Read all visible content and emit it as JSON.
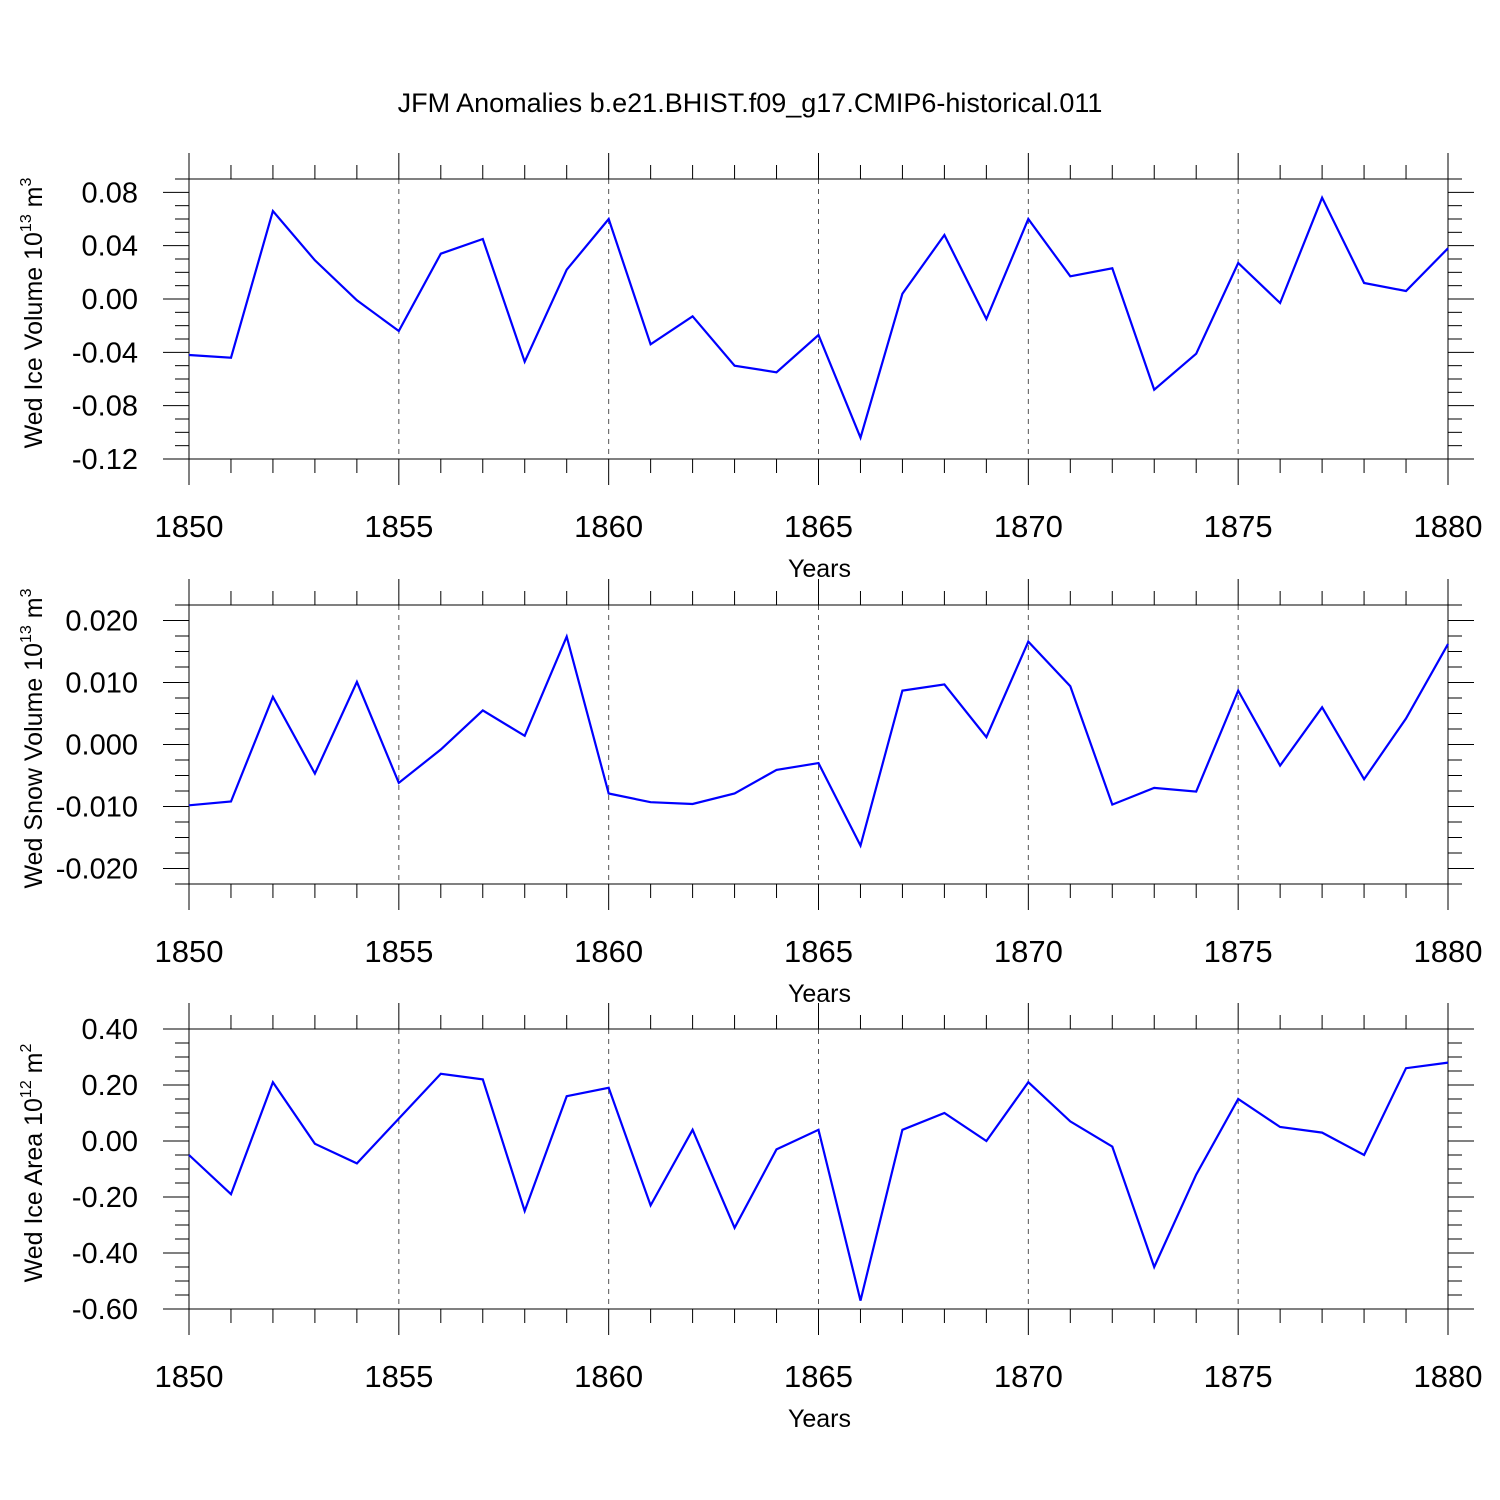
{
  "title": "JFM Anomalies b.e21.BHIST.f09_g17.CMIP6-historical.011",
  "colors": {
    "line": "#0000ff",
    "axis": "#000000",
    "grid": "#555555"
  },
  "chart_data": [
    {
      "type": "line",
      "title": "",
      "xlabel": "Years",
      "ylabel": {
        "main": "Wed Ice Volume 10",
        "exp": "13",
        "unit": " m",
        "unit_exp": "3"
      },
      "xlim": [
        1850,
        1880
      ],
      "ylim": [
        -0.12,
        0.09
      ],
      "yticks": [
        0.08,
        0.04,
        0.0,
        -0.04,
        -0.08,
        -0.12
      ],
      "ytick_labels": [
        "0.08",
        "0.04",
        "0.00",
        "-0.04",
        "-0.08",
        "-0.12"
      ],
      "xticks": [
        1850,
        1855,
        1860,
        1865,
        1870,
        1875,
        1880
      ],
      "xtick_labels": [
        "1850",
        "1855",
        "1860",
        "1865",
        "1870",
        "1875",
        "1880"
      ],
      "grid": "vertical dashed at major x ticks",
      "x": [
        1850,
        1851,
        1852,
        1853,
        1854,
        1855,
        1856,
        1857,
        1858,
        1859,
        1860,
        1861,
        1862,
        1863,
        1864,
        1865,
        1866,
        1867,
        1868,
        1869,
        1870,
        1871,
        1872,
        1873,
        1874,
        1875,
        1876,
        1877,
        1878,
        1879,
        1880
      ],
      "values": [
        -0.042,
        -0.044,
        0.066,
        0.029,
        -0.001,
        -0.024,
        0.034,
        0.045,
        -0.047,
        0.022,
        0.06,
        -0.034,
        -0.013,
        -0.05,
        -0.055,
        -0.027,
        -0.104,
        0.004,
        0.048,
        -0.015,
        0.06,
        0.017,
        0.023,
        -0.068,
        -0.041,
        0.027,
        -0.003,
        0.076,
        0.012,
        0.006,
        0.038
      ]
    },
    {
      "type": "line",
      "title": "",
      "xlabel": "Years",
      "ylabel": {
        "main": "Wed Snow Volume 10",
        "exp": "13",
        "unit": " m",
        "unit_exp": "3"
      },
      "xlim": [
        1850,
        1880
      ],
      "ylim": [
        -0.0225,
        0.0225
      ],
      "yticks": [
        0.02,
        0.01,
        0.0,
        -0.01,
        -0.02
      ],
      "ytick_labels": [
        "0.020",
        "0.010",
        "0.000",
        "-0.010",
        "-0.020"
      ],
      "xticks": [
        1850,
        1855,
        1860,
        1865,
        1870,
        1875,
        1880
      ],
      "xtick_labels": [
        "1850",
        "1855",
        "1860",
        "1865",
        "1870",
        "1875",
        "1880"
      ],
      "grid": "vertical dashed at major x ticks",
      "x": [
        1850,
        1851,
        1852,
        1853,
        1854,
        1855,
        1856,
        1857,
        1858,
        1859,
        1860,
        1861,
        1862,
        1863,
        1864,
        1865,
        1866,
        1867,
        1868,
        1869,
        1870,
        1871,
        1872,
        1873,
        1874,
        1875,
        1876,
        1877,
        1878,
        1879,
        1880
      ],
      "values": [
        -0.0098,
        -0.0092,
        0.0077,
        -0.0047,
        0.0101,
        -0.0062,
        -0.0008,
        0.0055,
        0.0014,
        0.0174,
        -0.0079,
        -0.0093,
        -0.0096,
        -0.0079,
        -0.0041,
        -0.003,
        -0.0163,
        0.0087,
        0.0097,
        0.0012,
        0.0166,
        0.0094,
        -0.0097,
        -0.007,
        -0.0076,
        0.0087,
        -0.0034,
        0.006,
        -0.0056,
        0.0042,
        0.0162
      ]
    },
    {
      "type": "line",
      "title": "",
      "xlabel": "Years",
      "ylabel": {
        "main": "Wed Ice Area 10",
        "exp": "12",
        "unit": " m",
        "unit_exp": "2"
      },
      "xlim": [
        1850,
        1880
      ],
      "ylim": [
        -0.6,
        0.4
      ],
      "yticks": [
        0.4,
        0.2,
        0.0,
        -0.2,
        -0.4,
        -0.6
      ],
      "ytick_labels": [
        "0.40",
        "0.20",
        "0.00",
        "-0.20",
        "-0.40",
        "-0.60"
      ],
      "xticks": [
        1850,
        1855,
        1860,
        1865,
        1870,
        1875,
        1880
      ],
      "xtick_labels": [
        "1850",
        "1855",
        "1860",
        "1865",
        "1870",
        "1875",
        "1880"
      ],
      "grid": "vertical dashed at major x ticks",
      "x": [
        1850,
        1851,
        1852,
        1853,
        1854,
        1855,
        1856,
        1857,
        1858,
        1859,
        1860,
        1861,
        1862,
        1863,
        1864,
        1865,
        1866,
        1867,
        1868,
        1869,
        1870,
        1871,
        1872,
        1873,
        1874,
        1875,
        1876,
        1877,
        1878,
        1879,
        1880
      ],
      "values": [
        -0.05,
        -0.19,
        0.21,
        -0.01,
        -0.08,
        0.08,
        0.24,
        0.22,
        -0.25,
        0.16,
        0.19,
        -0.23,
        0.04,
        -0.31,
        -0.03,
        0.04,
        -0.57,
        0.04,
        0.1,
        0.0,
        0.21,
        0.07,
        -0.02,
        -0.45,
        -0.12,
        0.15,
        0.05,
        0.03,
        -0.05,
        0.26,
        0.28
      ]
    }
  ]
}
